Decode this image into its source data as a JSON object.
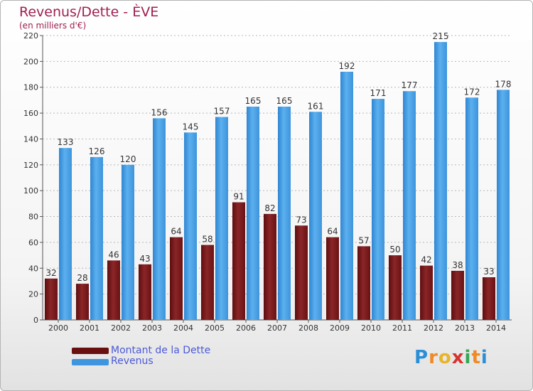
{
  "title": "Revenus/Dette - ÈVE",
  "subtitle": "(en milliers d'€)",
  "chart_data": {
    "type": "bar",
    "title": "Revenus/Dette - ÈVE",
    "subtitle": "(en milliers d'€)",
    "categories": [
      "2000",
      "2001",
      "2002",
      "2003",
      "2004",
      "2005",
      "2006",
      "2007",
      "2008",
      "2009",
      "2010",
      "2011",
      "2012",
      "2013",
      "2014"
    ],
    "series": [
      {
        "name": "Montant de la Dette",
        "color": "#7b1416",
        "values": [
          32,
          28,
          46,
          43,
          64,
          58,
          91,
          82,
          73,
          64,
          57,
          50,
          42,
          38,
          33
        ]
      },
      {
        "name": "Revenus",
        "color": "#4a9fe4",
        "values": [
          133,
          126,
          120,
          156,
          145,
          157,
          165,
          165,
          161,
          192,
          171,
          177,
          215,
          172,
          178
        ]
      }
    ],
    "ylim": [
      0,
      220
    ],
    "yticks": [
      0,
      20,
      40,
      60,
      80,
      100,
      120,
      140,
      160,
      180,
      200,
      220
    ],
    "grid": true,
    "legend": "bottom-left"
  },
  "legend": [
    {
      "label": "Montant de la Dette",
      "color": "#6a0f10"
    },
    {
      "label": "Revenus",
      "color": "#3f96de"
    }
  ],
  "logo": {
    "letters": [
      "P",
      "r",
      "o",
      "x",
      "i",
      "t",
      "i"
    ],
    "colors": [
      "#2b8fd6",
      "#f08a24",
      "#e8b428",
      "#d8322e",
      "#34a853",
      "#f08a24",
      "#2b8fd6"
    ]
  }
}
